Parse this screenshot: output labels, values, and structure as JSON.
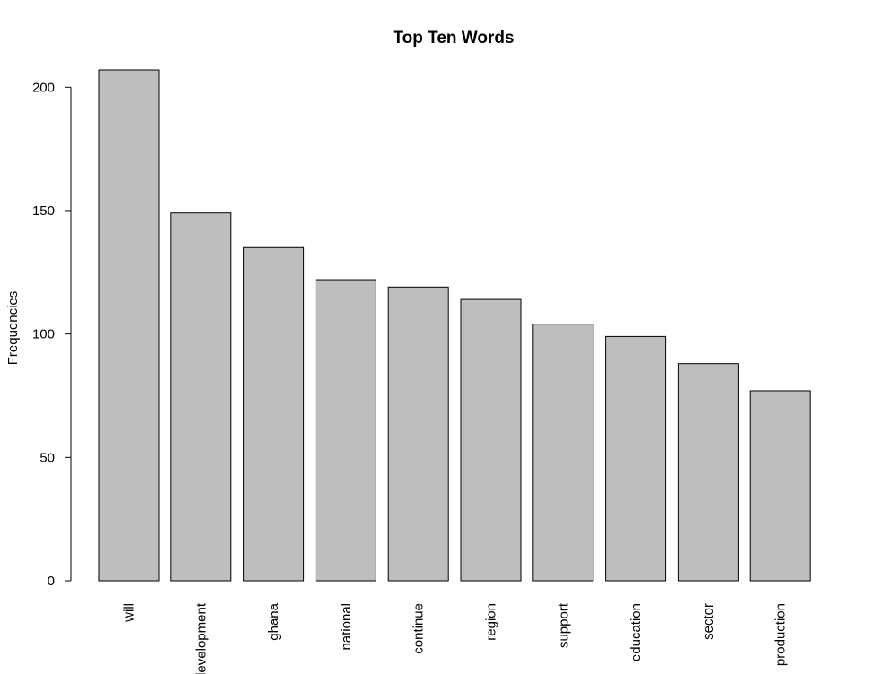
{
  "chart_data": {
    "type": "bar",
    "title": "Top Ten Words",
    "xlabel": "",
    "ylabel": "Frequencies",
    "categories": [
      "will",
      "development",
      "ghana",
      "national",
      "continue",
      "region",
      "support",
      "education",
      "sector",
      "production"
    ],
    "values": [
      207,
      149,
      135,
      122,
      119,
      114,
      104,
      99,
      88,
      77
    ],
    "ylim": [
      0,
      207
    ],
    "yticks": [
      0,
      50,
      100,
      150,
      200
    ],
    "grid": false,
    "legend": "none",
    "bar_color": "#bebebe",
    "bar_border_color": "#000000"
  }
}
